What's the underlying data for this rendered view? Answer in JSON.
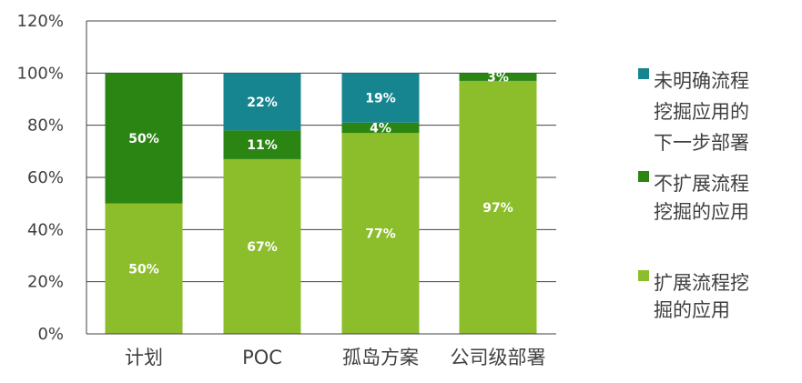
{
  "chart_data": {
    "type": "bar",
    "stacked": true,
    "categories": [
      "计划",
      "POC",
      "孤岛方案",
      "公司级部署"
    ],
    "ylim": [
      0,
      120
    ],
    "y_ticks": [
      "0%",
      "20%",
      "40%",
      "60%",
      "80%",
      "100%",
      "120%"
    ],
    "grid": true,
    "legend_position": "right",
    "series": [
      {
        "name": "扩展流程挖掘的应用",
        "legend_lines": [
          "扩展流程挖",
          "掘的应用"
        ],
        "color": "#8cbd2a",
        "values": [
          50,
          67,
          77,
          97
        ],
        "labels": [
          "50%",
          "67%",
          "77%",
          "97%"
        ]
      },
      {
        "name": "不扩展流程挖掘的应用",
        "legend_lines": [
          "不扩展流程",
          "挖掘的应用"
        ],
        "color": "#2a8512",
        "values": [
          50,
          11,
          4,
          3
        ],
        "labels": [
          "50%",
          "11%",
          "4%",
          "3%"
        ]
      },
      {
        "name": "未明确流程挖掘应用的下一步部署",
        "legend_lines": [
          "未明确流程",
          "挖掘应用的",
          "下一步部署"
        ],
        "color": "#17858f",
        "values": [
          0,
          22,
          19,
          0
        ],
        "labels": [
          "",
          "22%",
          "19%",
          ""
        ]
      }
    ]
  }
}
